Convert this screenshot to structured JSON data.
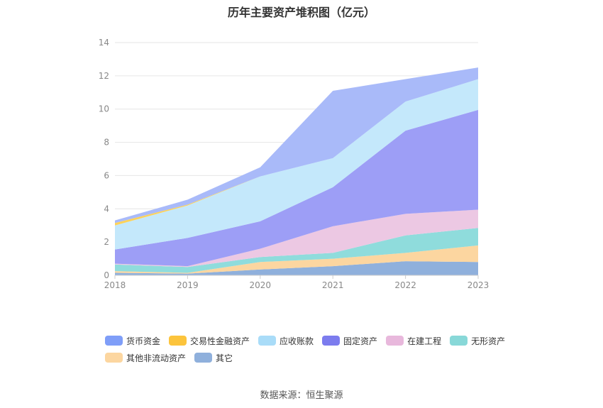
{
  "title": "历年主要资产堆积图（亿元）",
  "source": "数据来源：恒生聚源",
  "chart_data": {
    "type": "area",
    "stacked": true,
    "categories": [
      "2018",
      "2019",
      "2020",
      "2021",
      "2022",
      "2023"
    ],
    "ylim": [
      0,
      14
    ],
    "yticks": [
      0,
      2,
      4,
      6,
      8,
      10,
      12,
      14
    ],
    "grid": true,
    "legend_position": "bottom",
    "series": [
      {
        "name": "其它",
        "color": "#8fb0dc",
        "values": [
          0.15,
          0.1,
          0.35,
          0.55,
          0.85,
          0.8
        ]
      },
      {
        "name": "其他非流动资产",
        "color": "#fcd6a0",
        "values": [
          0.1,
          0.05,
          0.45,
          0.45,
          0.5,
          1.0
        ]
      },
      {
        "name": "无形资产",
        "color": "#8fdcdc",
        "values": [
          0.4,
          0.35,
          0.3,
          0.35,
          1.05,
          1.05
        ]
      },
      {
        "name": "在建工程",
        "color": "#ecc8e3",
        "values": [
          0.05,
          0.05,
          0.5,
          1.6,
          1.3,
          1.1
        ]
      },
      {
        "name": "固定资产",
        "color": "#9d9ef6",
        "values": [
          0.85,
          1.7,
          1.65,
          2.35,
          5.0,
          6.0
        ]
      },
      {
        "name": "应收账款",
        "color": "#c4e8fb",
        "values": [
          1.45,
          1.95,
          2.7,
          1.75,
          1.75,
          1.85
        ]
      },
      {
        "name": "交易性金融资产",
        "color": "#fcd25a",
        "values": [
          0.15,
          0.05,
          0,
          0,
          0,
          0
        ]
      },
      {
        "name": "货币资金",
        "color": "#a9baf9",
        "values": [
          0.15,
          0.3,
          0.55,
          4.05,
          1.35,
          0.7
        ]
      }
    ],
    "legend_order": [
      "货币资金",
      "交易性金融资产",
      "应收账款",
      "固定资产",
      "在建工程",
      "无形资产",
      "其他非流动资产",
      "其它"
    ],
    "legend_colors": {
      "货币资金": "#7f9ef8",
      "交易性金融资产": "#fcc43c",
      "应收账款": "#a9dcf8",
      "固定资产": "#7c7cee",
      "在建工程": "#e8b8dc",
      "无形资产": "#88d8d8",
      "其他非流动资产": "#fcd6a0",
      "其它": "#8fb0dc"
    }
  }
}
